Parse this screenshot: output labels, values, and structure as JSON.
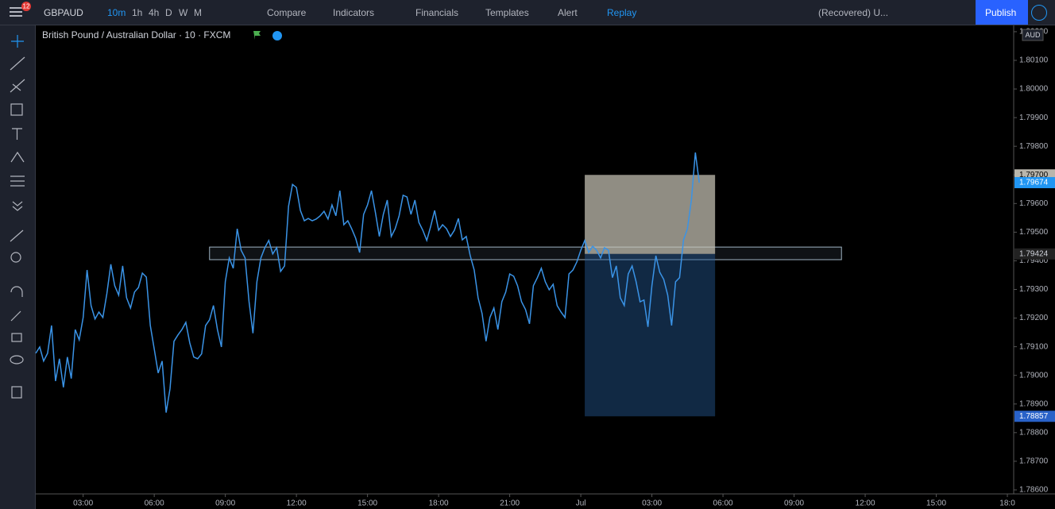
{
  "toolbar": {
    "badge": "12",
    "symbol": "GBPAUD",
    "intervals": [
      "10m",
      "1h",
      "4h",
      "D",
      "W",
      "M"
    ],
    "compare": "Compare",
    "indicators": "Indicators",
    "financials": "Financials",
    "templates": "Templates",
    "alert": "Alert",
    "replay": "Replay",
    "layout": "(Recovered) U...",
    "publish": "Publish"
  },
  "chart_data": {
    "type": "line",
    "legend_title": "British Pound / Australian Dollar · 10 · FXCM",
    "currency": "AUD",
    "x": [
      60,
      70,
      80,
      90,
      100,
      110,
      120,
      130,
      140,
      150,
      160,
      170,
      180,
      190,
      200,
      210,
      220,
      230,
      240,
      250,
      260,
      270,
      280,
      290,
      300,
      310,
      320,
      330,
      340,
      350,
      360,
      370,
      380,
      390,
      400,
      410,
      420,
      430,
      440,
      450,
      460,
      470,
      480,
      490,
      500,
      510,
      520,
      530,
      540,
      550,
      560,
      570,
      580,
      590,
      600,
      610,
      620,
      630,
      640,
      650,
      660,
      670,
      680,
      690,
      700,
      710,
      720,
      730,
      740,
      750,
      760,
      770,
      780,
      790,
      800,
      810,
      820,
      830,
      840,
      850,
      860,
      870,
      880,
      890,
      900,
      910,
      920,
      930,
      940,
      950,
      960,
      970,
      980,
      990,
      1000,
      1010,
      1020,
      1030,
      1040,
      1050,
      1060,
      1070,
      1080,
      1090,
      1100,
      1110,
      1120,
      1130,
      1140,
      1150,
      1160,
      1170,
      1180,
      1190,
      1200,
      1210,
      1220,
      1230,
      1240,
      1250,
      1260,
      1270,
      1280,
      1290,
      1300,
      1310,
      1320,
      1330,
      1340,
      1350,
      1360,
      1370,
      1380,
      1390,
      1400,
      1410,
      1420,
      1430,
      1440,
      1450,
      1460,
      1470,
      1480,
      1490,
      1500,
      1510,
      1520,
      1530,
      1540,
      1550,
      1560,
      1570,
      1580,
      1590,
      1600,
      1610,
      1620,
      1630,
      1640,
      1650,
      1660,
      1670,
      1680,
      1690,
      1700,
      1710,
      1720,
      1730,
      1740
    ],
    "series": [
      {
        "name": "GBPAUD",
        "color": "#3a93e6",
        "values": [
          1.79077,
          1.79099,
          1.7905,
          1.79077,
          1.79174,
          1.7898,
          1.79058,
          1.78958,
          1.79064,
          1.78989,
          1.7916,
          1.79124,
          1.79202,
          1.79368,
          1.79244,
          1.79197,
          1.79221,
          1.79202,
          1.79285,
          1.79388,
          1.79313,
          1.7928,
          1.79382,
          1.79271,
          1.79235,
          1.79291,
          1.79307,
          1.79357,
          1.79343,
          1.79174,
          1.79091,
          1.79008,
          1.7905,
          1.7887,
          1.78953,
          1.79119,
          1.79141,
          1.7916,
          1.79185,
          1.79113,
          1.79064,
          1.79058,
          1.79075,
          1.79174,
          1.79194,
          1.79244,
          1.7916,
          1.79099,
          1.79327,
          1.7941,
          1.79374,
          1.79512,
          1.79437,
          1.7941,
          1.79257,
          1.79147,
          1.79327,
          1.7941,
          1.79446,
          1.79471,
          1.79424,
          1.79446,
          1.79363,
          1.79382,
          1.7959,
          1.79667,
          1.79656,
          1.79576,
          1.7954,
          1.79548,
          1.7954,
          1.79546,
          1.79557,
          1.79573,
          1.79546,
          1.79595,
          1.79557,
          1.79645,
          1.79526,
          1.7954,
          1.79512,
          1.79479,
          1.79429,
          1.79562,
          1.79595,
          1.79645,
          1.79568,
          1.79485,
          1.79562,
          1.79612,
          1.79485,
          1.79512,
          1.79557,
          1.79629,
          1.79623,
          1.79562,
          1.79612,
          1.79534,
          1.79507,
          1.79471,
          1.79521,
          1.79576,
          1.79507,
          1.79526,
          1.79512,
          1.79485,
          1.79507,
          1.79548,
          1.79473,
          1.79485,
          1.79418,
          1.79368,
          1.79271,
          1.79216,
          1.79119,
          1.79202,
          1.79235,
          1.7916,
          1.79257,
          1.79291,
          1.79354,
          1.79346,
          1.79313,
          1.79257,
          1.7923,
          1.7918,
          1.79313,
          1.79341,
          1.79374,
          1.79327,
          1.79299,
          1.79318,
          1.79244,
          1.79221,
          1.79202,
          1.79354,
          1.79368,
          1.79396,
          1.79437,
          1.79471,
          1.79429,
          1.79451,
          1.79437,
          1.7941,
          1.79446,
          1.79437,
          1.79341,
          1.79382,
          1.79271,
          1.79244,
          1.79354,
          1.79382,
          1.79327,
          1.79257,
          1.79263,
          1.79169,
          1.79313,
          1.79418,
          1.7936,
          1.79335,
          1.7928,
          1.79174,
          1.79327,
          1.79341,
          1.79473,
          1.79512,
          1.79612,
          1.79778,
          1.79673
        ],
        "last_label": "1.79674"
      }
    ],
    "xlim": [
      60,
      2534
    ],
    "xticks": [
      {
        "value": 180,
        "label": "03:00"
      },
      {
        "value": 360,
        "label": "06:00"
      },
      {
        "value": 540,
        "label": "09:00"
      },
      {
        "value": 720,
        "label": "12:00"
      },
      {
        "value": 900,
        "label": "15:00"
      },
      {
        "value": 1080,
        "label": "18:00"
      },
      {
        "value": 1260,
        "label": "21:00"
      },
      {
        "value": 1440,
        "label": "Jul"
      },
      {
        "value": 1620,
        "label": "03:00"
      },
      {
        "value": 1800,
        "label": "06:00"
      },
      {
        "value": 1980,
        "label": "09:00"
      },
      {
        "value": 2160,
        "label": "12:00"
      },
      {
        "value": 2340,
        "label": "15:00"
      },
      {
        "value": 2520,
        "label": "18:0"
      }
    ],
    "ylim": [
      1.78586,
      1.80222
    ],
    "yticks": [
      {
        "value": 1.786,
        "label": "1.78600"
      },
      {
        "value": 1.787,
        "label": "1.78700"
      },
      {
        "value": 1.788,
        "label": "1.78800"
      },
      {
        "value": 1.789,
        "label": "1.78900"
      },
      {
        "value": 1.79,
        "label": "1.79000"
      },
      {
        "value": 1.791,
        "label": "1.79100"
      },
      {
        "value": 1.792,
        "label": "1.79200"
      },
      {
        "value": 1.793,
        "label": "1.79300"
      },
      {
        "value": 1.794,
        "label": "1.79400"
      },
      {
        "value": 1.795,
        "label": "1.79500"
      },
      {
        "value": 1.796,
        "label": "1.79600"
      },
      {
        "value": 1.797,
        "label": "1.79700"
      },
      {
        "value": 1.798,
        "label": "1.79800"
      },
      {
        "value": 1.799,
        "label": "1.79900"
      },
      {
        "value": 1.8,
        "label": "1.80000"
      },
      {
        "value": 1.801,
        "label": "1.80100"
      },
      {
        "value": 1.802,
        "label": "1.80200"
      }
    ],
    "grid": false,
    "zone": {
      "x": [
        500,
        2100
      ],
      "y": [
        1.79404,
        1.79448
      ]
    },
    "position": {
      "x": [
        1450,
        1780
      ],
      "target": {
        "value": 1.797,
        "label": "1.79700"
      },
      "entry": {
        "value": 1.79424,
        "label": "1.79424"
      },
      "stop": {
        "value": 1.78857,
        "label": "1.78857"
      }
    }
  }
}
